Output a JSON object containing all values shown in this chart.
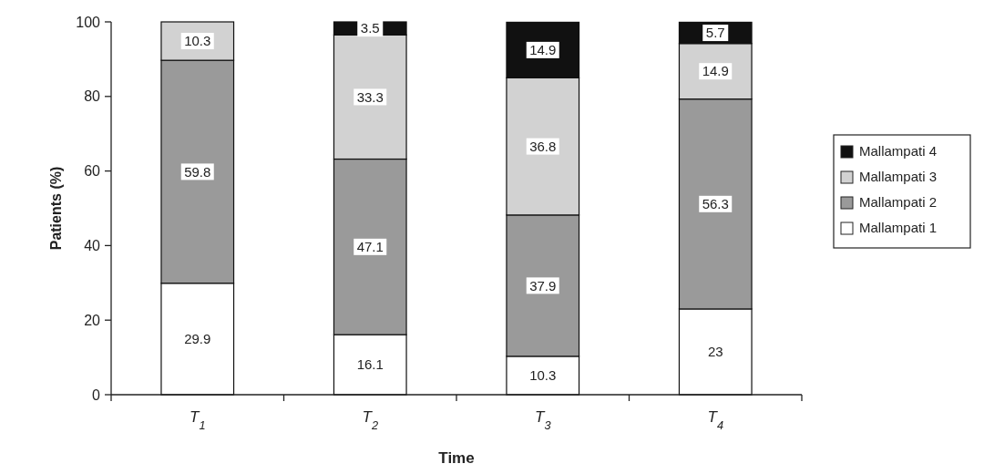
{
  "chart_data": {
    "type": "bar",
    "stacked": true,
    "xlabel": "Time",
    "ylabel": "Patients (%)",
    "categories": [
      "T$_{1}$",
      "T$_{2}$",
      "T$_{3}$",
      "T$_{4}$"
    ],
    "ylim": [
      0,
      100
    ],
    "yticks": [
      0,
      20,
      40,
      60,
      80,
      100
    ],
    "legend": "right",
    "grid": false,
    "series": [
      {
        "name": "Mallampati 1",
        "color": "#ffffff",
        "values": [
          29.9,
          16.1,
          10.3,
          23
        ],
        "value_labels": [
          "29.9",
          "16.1",
          "10.3",
          "23"
        ]
      },
      {
        "name": "Mallampati 2",
        "color": "#9a9a9a",
        "values": [
          59.8,
          47.1,
          37.9,
          56.3
        ],
        "value_labels": [
          "59.8",
          "47.1",
          "37.9",
          "56.3"
        ]
      },
      {
        "name": "Mallampati 3",
        "color": "#d2d2d2",
        "values": [
          10.3,
          33.3,
          36.8,
          14.9
        ],
        "value_labels": [
          "10.3",
          "33.3",
          "36.8",
          "14.9"
        ]
      },
      {
        "name": "Mallampati 4",
        "color": "#111111",
        "values": [
          null,
          3.5,
          14.9,
          5.7
        ],
        "value_labels": [
          null,
          "3.5",
          "14.9",
          "5.7"
        ]
      }
    ]
  }
}
